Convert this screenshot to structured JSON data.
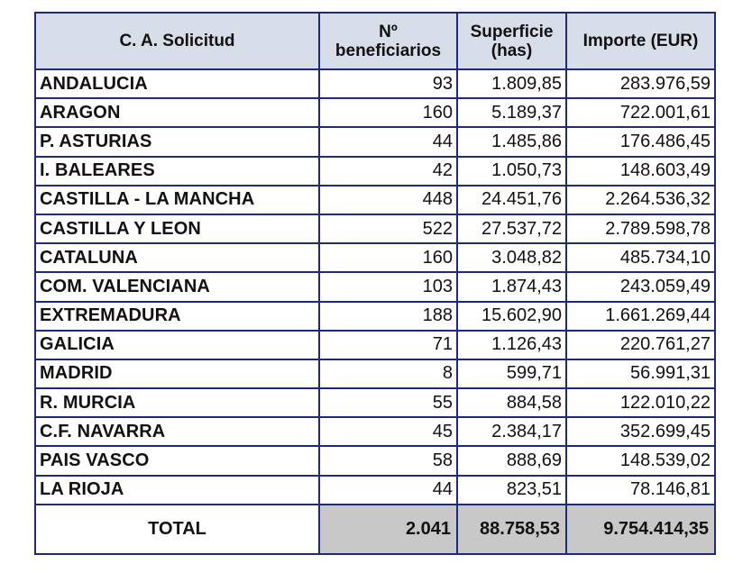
{
  "table": {
    "headers": [
      "C. A. Solicitud",
      "Nº beneficiarios",
      "Superficie (has)",
      "Importe (EUR)"
    ],
    "header_lines": {
      "benef_line1": "Nº",
      "benef_line2": "beneficiarios",
      "sup_line1": "Superficie",
      "sup_line2": "(has)"
    },
    "rows": [
      [
        "ANDALUCIA",
        "93",
        "1.809,85",
        "283.976,59"
      ],
      [
        "ARAGON",
        "160",
        "5.189,37",
        "722.001,61"
      ],
      [
        "P. ASTURIAS",
        "44",
        "1.485,86",
        "176.486,45"
      ],
      [
        "I. BALEARES",
        "42",
        "1.050,73",
        "148.603,49"
      ],
      [
        "CASTILLA - LA MANCHA",
        "448",
        "24.451,76",
        "2.264.536,32"
      ],
      [
        "CASTILLA Y LEON",
        "522",
        "27.537,72",
        "2.789.598,78"
      ],
      [
        "CATALUNA",
        "160",
        "3.048,82",
        "485.734,10"
      ],
      [
        "COM. VALENCIANA",
        "103",
        "1.874,43",
        "243.059,49"
      ],
      [
        "EXTREMADURA",
        "188",
        "15.602,90",
        "1.661.269,44"
      ],
      [
        "GALICIA",
        "71",
        "1.126,43",
        "220.761,27"
      ],
      [
        "MADRID",
        "8",
        "599,71",
        "56.991,31"
      ],
      [
        "R. MURCIA",
        "55",
        "884,58",
        "122.010,22"
      ],
      [
        "C.F. NAVARRA",
        "45",
        "2.384,17",
        "352.699,45"
      ],
      [
        "PAIS VASCO",
        "58",
        "888,69",
        "148.539,02"
      ],
      [
        "LA RIOJA",
        "44",
        "823,51",
        "78.146,81"
      ]
    ],
    "total": {
      "label": "TOTAL",
      "beneficiarios": "2.041",
      "superficie": "88.758,53",
      "importe": "9.754.414,35"
    },
    "colors": {
      "border": "#1e2a7a",
      "header_bg": "#d7dde9",
      "total_bg": "#c8c8c8"
    }
  }
}
